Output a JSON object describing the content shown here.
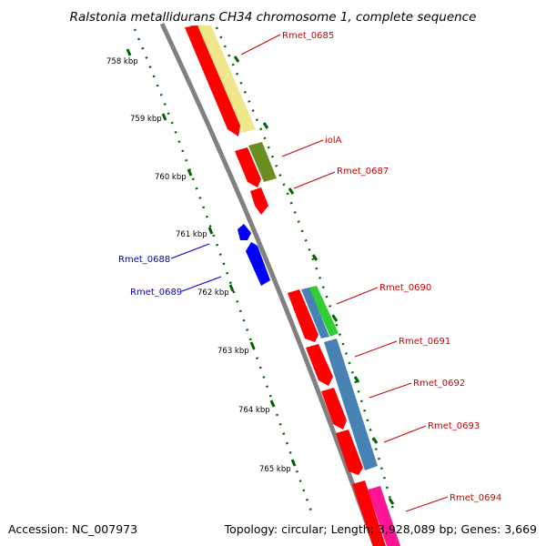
{
  "title": "Ralstonia metallidurans CH34 chromosome 1, complete sequence",
  "footer": {
    "accession": "Accession: NC_007973",
    "details": "Topology: circular; Length: 3,928,089 bp; Genes: 3,669"
  },
  "ticks": [
    "758 kbp",
    "759 kbp",
    "760 kbp",
    "761 kbp",
    "762 kbp",
    "763 kbp",
    "764 kbp",
    "765 kbp"
  ],
  "gene_labels": {
    "rmet_0685": "Rmet_0685",
    "iola": "iolA",
    "rmet_0687": "Rmet_0687",
    "rmet_0688": "Rmet_0688",
    "rmet_0689": "Rmet_0689",
    "rmet_0690": "Rmet_0690",
    "rmet_0691": "Rmet_0691",
    "rmet_0692": "Rmet_0692",
    "rmet_0693": "Rmet_0693",
    "rmet_0694": "Rmet_0694"
  },
  "colors": {
    "forward_gene": "#ff0000",
    "reverse_gene": "#0000ff",
    "backbone": "#808080",
    "tick": "#006400",
    "cog_yellow": "#f0e68c",
    "cog_olive": "#6b8e23",
    "cog_steelblue": "#4682b4",
    "cog_green": "#32cd32",
    "cog_magenta": "#ff1493"
  }
}
